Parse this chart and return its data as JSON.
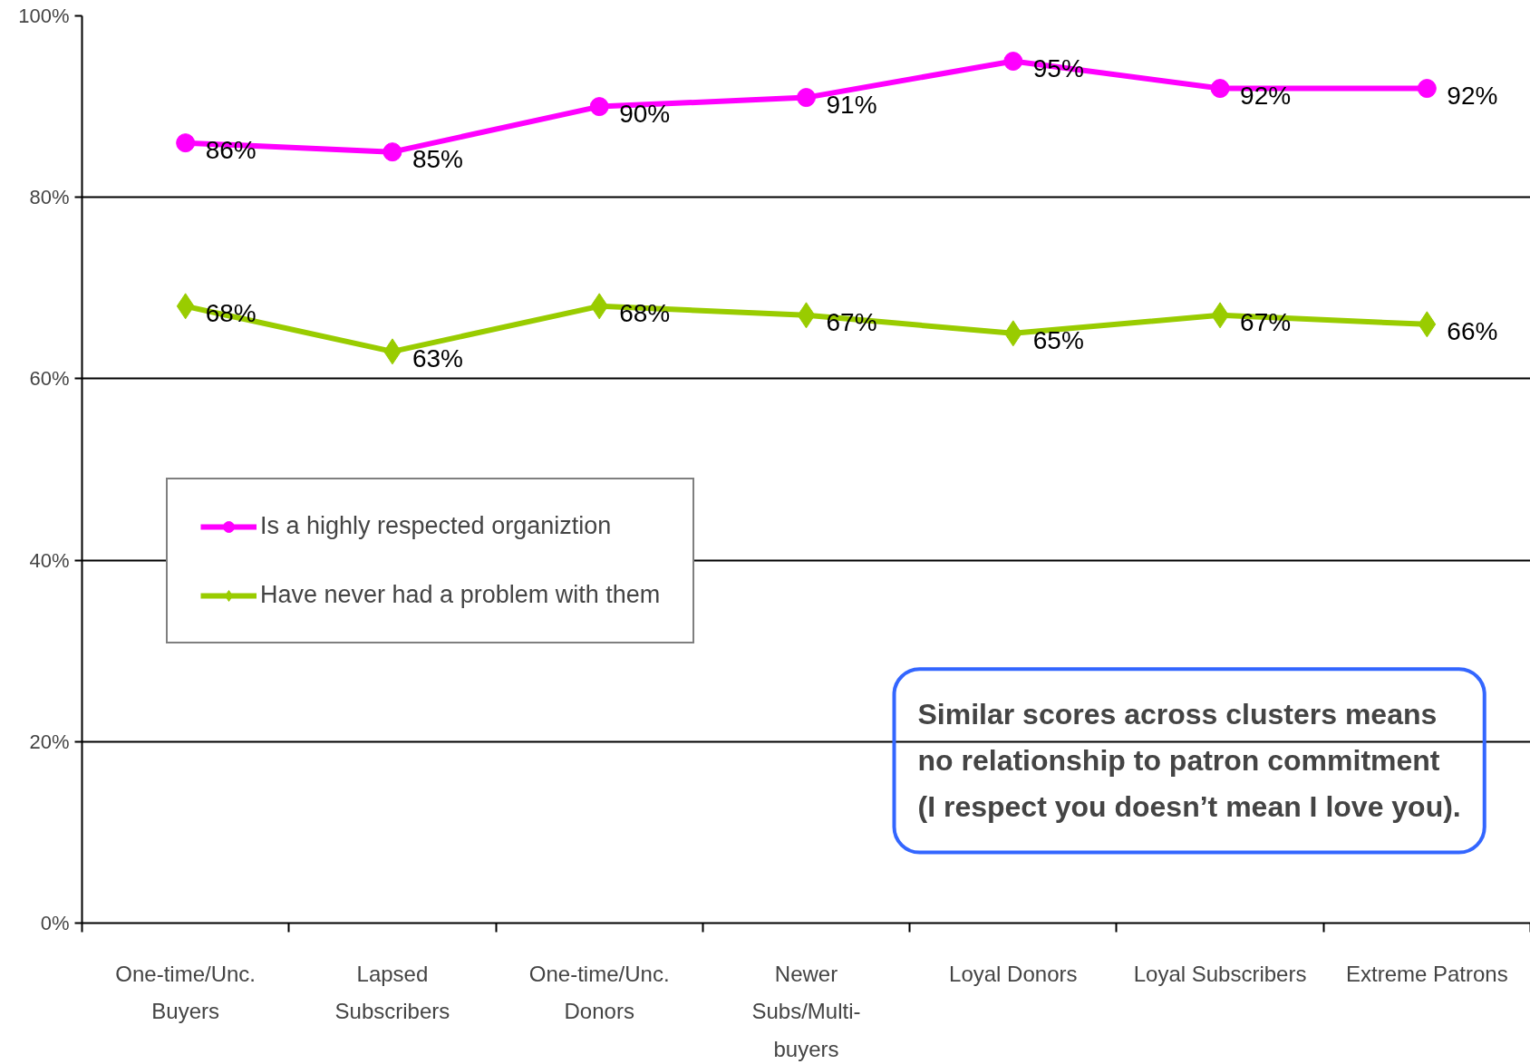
{
  "chart_data": {
    "type": "line",
    "categories": [
      "One-time/Unc.\nBuyers",
      "Lapsed\nSubscribers",
      "One-time/Unc.\nDonors",
      "Newer\nSubs/Multi-\nbuyers",
      "Loyal Donors",
      "Loyal Subscribers",
      "Extreme Patrons"
    ],
    "series": [
      {
        "name": "Is a highly respected organiztion",
        "color": "#ff00ff",
        "marker": "circle",
        "values": [
          86,
          85,
          90,
          91,
          95,
          92,
          92
        ],
        "value_labels": [
          "86%",
          "85%",
          "90%",
          "91%",
          "95%",
          "92%",
          "92%"
        ]
      },
      {
        "name": "Have never had a problem with them",
        "color": "#99cc00",
        "marker": "diamond",
        "values": [
          68,
          63,
          68,
          67,
          65,
          67,
          66
        ],
        "value_labels": [
          "68%",
          "63%",
          "68%",
          "67%",
          "65%",
          "67%",
          "66%"
        ]
      }
    ],
    "ylim": [
      0,
      100
    ],
    "yticks": [
      {
        "value": 0,
        "label": "0%"
      },
      {
        "value": 20,
        "label": "20%"
      },
      {
        "value": 40,
        "label": "40%"
      },
      {
        "value": 60,
        "label": "60%"
      },
      {
        "value": 80,
        "label": "80%"
      },
      {
        "value": 100,
        "label": "100%"
      }
    ],
    "grid": "y",
    "legend": "left",
    "line_style": "solid",
    "annotations": [
      "Similar scores across clusters means\nno relationship to patron commitment\n(I respect you doesn’t mean I love you)."
    ]
  }
}
